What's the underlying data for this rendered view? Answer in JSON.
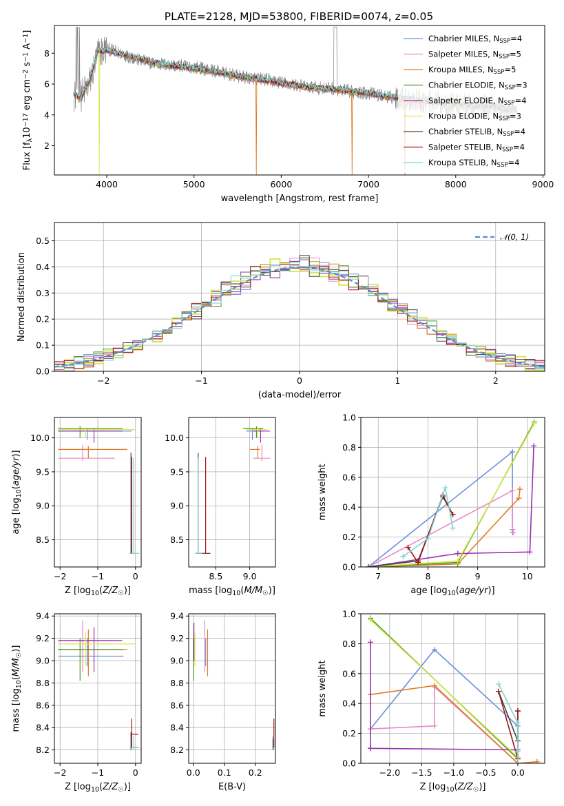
{
  "figure": {
    "title": "PLATE=2128, MJD=53800, FIBERID=0074, z=0.05"
  },
  "series_styles": [
    {
      "name": "Chabrier MILES",
      "ssp": "4",
      "color": "#6a8fdc"
    },
    {
      "name": "Salpeter MILES",
      "ssp": "5",
      "color": "#e78ac3"
    },
    {
      "name": "Kroupa MILES",
      "ssp": "5",
      "color": "#e07b22"
    },
    {
      "name": "Chabrier ELODIE",
      "ssp": "3",
      "color": "#4d9a26"
    },
    {
      "name": "Salpeter ELODIE",
      "ssp": "4",
      "color": "#9b2fae"
    },
    {
      "name": "Kroupa ELODIE",
      "ssp": "3",
      "color": "#d6e84a"
    },
    {
      "name": "Chabrier STELIB",
      "ssp": "4",
      "color": "#444444"
    },
    {
      "name": "Salpeter STELIB",
      "ssp": "4",
      "color": "#a31515"
    },
    {
      "name": "Kroupa STELIB",
      "ssp": "4",
      "color": "#7fd3d3"
    }
  ],
  "chart_data": [
    {
      "id": "spectrum",
      "type": "line",
      "title": "PLATE=2128, MJD=53800, FIBERID=0074, z=0.05",
      "xlabel": "wavelength [Angstrom, rest frame]",
      "ylabel": "Flux [f_λ 10^-17 erg cm^-2 s^-1 A^-1]",
      "xlim": [
        3400,
        9020
      ],
      "ylim": [
        0.1,
        9.8
      ],
      "xticks": [
        4000,
        5000,
        6000,
        7000,
        8000,
        9000
      ],
      "yticks": [
        2,
        4,
        6,
        8
      ],
      "legend": "upper right",
      "data_trend": {
        "x": [
          3600,
          3700,
          3800,
          3900,
          4000,
          4200,
          4400,
          4600,
          4800,
          5000,
          5200,
          5500,
          5800,
          6000,
          6300,
          6600,
          6800,
          7000,
          7200,
          7500,
          7800,
          8000,
          8200,
          8400,
          8600,
          8700
        ],
        "y": [
          5.3,
          5.2,
          6.0,
          8.0,
          8.3,
          7.9,
          7.5,
          7.3,
          7.2,
          7.1,
          6.9,
          6.5,
          6.3,
          6.1,
          5.8,
          5.7,
          5.5,
          5.4,
          5.2,
          5.0,
          4.8,
          4.7,
          4.5,
          4.6,
          4.3,
          4.3
        ]
      },
      "model_trend": {
        "x": [
          3600,
          3700,
          3800,
          3900,
          4000,
          4200,
          4400,
          4600,
          4800,
          5000,
          5200,
          5500,
          5800,
          6000,
          6300,
          6600,
          6800,
          7000,
          7200,
          7500,
          7800,
          8000,
          8200,
          8400,
          8600,
          8700
        ],
        "y": [
          5.5,
          5.0,
          6.2,
          8.1,
          8.2,
          7.9,
          7.6,
          7.3,
          7.15,
          7.0,
          6.85,
          6.5,
          6.25,
          6.05,
          5.8,
          5.65,
          5.5,
          5.4,
          5.2,
          5.0,
          4.8,
          4.7,
          4.55,
          4.6,
          4.35,
          4.35
        ]
      }
    },
    {
      "id": "residuals",
      "type": "histogram",
      "xlabel": "(data-model)/error",
      "ylabel": "Normed distribution",
      "xlim": [
        -2.5,
        2.5
      ],
      "ylim": [
        0,
        0.57
      ],
      "xticks": [
        -2,
        -1,
        0,
        1,
        2
      ],
      "yticks": [
        0.0,
        0.1,
        0.2,
        0.3,
        0.4,
        0.5
      ],
      "reference": {
        "name": "𝒩(0, 1)",
        "mean": 0,
        "sigma": 1,
        "color": "#5b8bd0"
      },
      "bin_width": 0.1
    },
    {
      "id": "age-vs-z",
      "type": "errorbar",
      "xlabel": "Z [log10(Z/Z☉)]",
      "ylabel": "age [log10(age/yr)]",
      "xlim": [
        -2.15,
        0.15
      ],
      "ylim": [
        8.1,
        10.3
      ],
      "xticks": [
        -2,
        -1,
        0
      ],
      "yticks": [
        8.5,
        9.0,
        9.5,
        10.0
      ],
      "points": [
        {
          "s": 0,
          "x": -1.28,
          "xlo": -2.05,
          "xhi": -0.1,
          "y": 10.1,
          "ylo": 9.97,
          "yhi": 10.14
        },
        {
          "s": 1,
          "x": -1.4,
          "xlo": -2.05,
          "xhi": -0.55,
          "y": 9.7,
          "ylo": 9.66,
          "yhi": 9.9
        },
        {
          "s": 2,
          "x": -1.25,
          "xlo": -2.05,
          "xhi": -0.22,
          "y": 9.83,
          "ylo": 9.7,
          "yhi": 9.88
        },
        {
          "s": 3,
          "x": -1.47,
          "xlo": -2.05,
          "xhi": -0.33,
          "y": 10.14,
          "ylo": 10.0,
          "yhi": 10.17
        },
        {
          "s": 4,
          "x": -1.1,
          "xlo": -2.05,
          "xhi": -0.35,
          "y": 10.1,
          "ylo": 9.93,
          "yhi": 10.14
        },
        {
          "s": 5,
          "x": -1.32,
          "xlo": -2.05,
          "xhi": 0.0,
          "y": 10.12,
          "ylo": 10.0,
          "yhi": 10.15
        },
        {
          "s": 6,
          "x": -0.12,
          "xlo": -0.16,
          "xhi": -0.08,
          "y": 8.3,
          "ylo": 8.3,
          "yhi": 9.78
        },
        {
          "s": 7,
          "x": -0.1,
          "xlo": -0.13,
          "xhi": -0.07,
          "y": 8.3,
          "ylo": 8.3,
          "yhi": 9.72
        },
        {
          "s": 8,
          "x": -0.05,
          "xlo": -0.16,
          "xhi": 0.1,
          "y": 8.3,
          "ylo": 8.3,
          "yhi": 9.7
        }
      ]
    },
    {
      "id": "age-vs-mass",
      "type": "errorbar",
      "xlabel": "mass [log10(M/M☉)]",
      "ylabel": "",
      "xlim": [
        8.1,
        9.38
      ],
      "ylim": [
        8.1,
        10.3
      ],
      "xticks": [
        8.5,
        9.0
      ],
      "yticks": [
        8.5,
        9.0,
        9.5,
        10.0
      ],
      "points": [
        {
          "s": 0,
          "x": 9.04,
          "xlo": 8.95,
          "xhi": 9.2,
          "y": 10.1,
          "ylo": 9.97,
          "yhi": 10.14
        },
        {
          "s": 1,
          "x": 9.18,
          "xlo": 9.05,
          "xhi": 9.3,
          "y": 9.7,
          "ylo": 9.66,
          "yhi": 9.9
        },
        {
          "s": 2,
          "x": 9.12,
          "xlo": 9.0,
          "xhi": 9.15,
          "y": 9.83,
          "ylo": 9.7,
          "yhi": 9.88
        },
        {
          "s": 3,
          "x": 9.1,
          "xlo": 8.9,
          "xhi": 9.2,
          "y": 10.14,
          "ylo": 10.0,
          "yhi": 10.17
        },
        {
          "s": 4,
          "x": 9.16,
          "xlo": 9.05,
          "xhi": 9.3,
          "y": 10.1,
          "ylo": 9.93,
          "yhi": 10.14
        },
        {
          "s": 5,
          "x": 9.12,
          "xlo": 8.95,
          "xhi": 9.25,
          "y": 10.12,
          "ylo": 10.0,
          "yhi": 10.15
        },
        {
          "s": 6,
          "x": 8.24,
          "xlo": 8.2,
          "xhi": 8.28,
          "y": 8.3,
          "ylo": 8.3,
          "yhi": 9.78
        },
        {
          "s": 7,
          "x": 8.35,
          "xlo": 8.23,
          "xhi": 8.42,
          "y": 8.3,
          "ylo": 8.3,
          "yhi": 9.72
        },
        {
          "s": 8,
          "x": 8.24,
          "xlo": 8.19,
          "xhi": 8.3,
          "y": 8.3,
          "ylo": 8.3,
          "yhi": 9.7
        }
      ]
    },
    {
      "id": "weight-vs-age",
      "type": "line",
      "xlabel": "age [log10(age/yr)]",
      "ylabel": "mass weight",
      "xlim": [
        6.65,
        10.35
      ],
      "ylim": [
        0,
        1
      ],
      "xticks": [
        7,
        8,
        9,
        10
      ],
      "yticks": [
        0.0,
        0.2,
        0.4,
        0.6,
        0.8,
        1.0
      ],
      "series": [
        {
          "s": 0,
          "x": [
            6.8,
            9.7,
            9.7,
            9.7
          ],
          "y": [
            0.0,
            0.77,
            0.25,
            0.23
          ]
        },
        {
          "s": 1,
          "x": [
            6.8,
            9.7,
            9.7,
            9.72
          ],
          "y": [
            0.0,
            0.51,
            0.25,
            0.23
          ]
        },
        {
          "s": 2,
          "x": [
            6.8,
            8.6,
            9.83,
            9.85
          ],
          "y": [
            0.0,
            0.02,
            0.46,
            0.52
          ]
        },
        {
          "s": 3,
          "x": [
            6.8,
            8.6,
            10.14
          ],
          "y": [
            0.0,
            0.03,
            0.97
          ]
        },
        {
          "s": 4,
          "x": [
            6.8,
            8.6,
            10.05,
            10.13
          ],
          "y": [
            0.0,
            0.09,
            0.1,
            0.81
          ]
        },
        {
          "s": 5,
          "x": [
            6.8,
            8.6,
            10.14
          ],
          "y": [
            0.0,
            0.04,
            0.96
          ]
        },
        {
          "s": 6,
          "x": [
            6.8,
            7.8,
            8.3,
            8.5
          ],
          "y": [
            0.0,
            0.04,
            0.47,
            0.35
          ]
        },
        {
          "s": 7,
          "x": [
            7.6,
            7.8,
            8.3,
            8.5
          ],
          "y": [
            0.13,
            0.03,
            0.48,
            0.35
          ]
        },
        {
          "s": 8,
          "x": [
            7.5,
            8.0,
            8.35,
            8.5
          ],
          "y": [
            0.07,
            0.19,
            0.53,
            0.26
          ]
        }
      ]
    },
    {
      "id": "mass-vs-z",
      "type": "errorbar",
      "xlabel": "Z [log10(Z/Z☉)]",
      "ylabel": "mass [log10(M/M☉)]",
      "xlim": [
        -2.15,
        0.15
      ],
      "ylim": [
        8.08,
        9.42
      ],
      "xticks": [
        -2,
        -1,
        0
      ],
      "yticks": [
        8.2,
        8.4,
        8.6,
        8.8,
        9.0,
        9.2,
        9.4
      ],
      "points": [
        {
          "s": 0,
          "x": -1.28,
          "xlo": -2.05,
          "xhi": -0.32,
          "y": 9.04,
          "ylo": 8.95,
          "yhi": 9.2
        },
        {
          "s": 1,
          "x": -1.4,
          "xlo": -2.05,
          "xhi": -0.55,
          "y": 9.18,
          "ylo": 8.9,
          "yhi": 9.36
        },
        {
          "s": 2,
          "x": -1.25,
          "xlo": -2.05,
          "xhi": -0.22,
          "y": 9.1,
          "ylo": 8.86,
          "yhi": 9.28
        },
        {
          "s": 3,
          "x": -1.47,
          "xlo": -2.05,
          "xhi": -0.33,
          "y": 9.1,
          "ylo": 8.82,
          "yhi": 9.2
        },
        {
          "s": 4,
          "x": -1.1,
          "xlo": -2.05,
          "xhi": -0.35,
          "y": 9.18,
          "ylo": 8.9,
          "yhi": 9.3
        },
        {
          "s": 5,
          "x": -1.32,
          "xlo": -2.05,
          "xhi": 0.0,
          "y": 9.15,
          "ylo": 8.95,
          "yhi": 9.25
        },
        {
          "s": 6,
          "x": -0.12,
          "xlo": -0.16,
          "xhi": 0.08,
          "y": 8.22,
          "ylo": 8.2,
          "yhi": 8.36
        },
        {
          "s": 7,
          "x": -0.1,
          "xlo": -0.13,
          "xhi": 0.07,
          "y": 8.34,
          "ylo": 8.22,
          "yhi": 8.48
        },
        {
          "s": 8,
          "x": -0.05,
          "xlo": -0.16,
          "xhi": 0.1,
          "y": 8.22,
          "ylo": 8.2,
          "yhi": 8.32
        }
      ]
    },
    {
      "id": "mass-vs-ebv",
      "type": "errorbar",
      "xlabel": "E(B-V)",
      "ylabel": "",
      "xlim": [
        -0.015,
        0.265
      ],
      "ylim": [
        8.08,
        9.42
      ],
      "xticks": [
        0.0,
        0.1,
        0.2
      ],
      "yticks": [
        8.2,
        8.4,
        8.6,
        8.8,
        9.0,
        9.2,
        9.4
      ],
      "points": [
        {
          "s": 0,
          "x": 0.04,
          "xlo": 0.04,
          "xhi": 0.04,
          "y": 9.04,
          "ylo": 8.95,
          "yhi": 9.2
        },
        {
          "s": 1,
          "x": 0.037,
          "xlo": 0.037,
          "xhi": 0.037,
          "y": 9.18,
          "ylo": 8.9,
          "yhi": 9.36
        },
        {
          "s": 2,
          "x": 0.046,
          "xlo": 0.046,
          "xhi": 0.046,
          "y": 9.1,
          "ylo": 8.86,
          "yhi": 9.28
        },
        {
          "s": 3,
          "x": 0.0,
          "xlo": 0.0,
          "xhi": 0.0,
          "y": 9.1,
          "ylo": 8.82,
          "yhi": 9.2
        },
        {
          "s": 4,
          "x": 0.002,
          "xlo": 0.002,
          "xhi": 0.002,
          "y": 9.18,
          "ylo": 9.0,
          "yhi": 9.34
        },
        {
          "s": 5,
          "x": 0.005,
          "xlo": 0.005,
          "xhi": 0.005,
          "y": 9.15,
          "ylo": 8.95,
          "yhi": 9.25
        },
        {
          "s": 6,
          "x": 0.258,
          "xlo": 0.258,
          "xhi": 0.258,
          "y": 8.22,
          "ylo": 8.2,
          "yhi": 8.3
        },
        {
          "s": 7,
          "x": 0.26,
          "xlo": 0.26,
          "xhi": 0.26,
          "y": 8.34,
          "ylo": 8.22,
          "yhi": 8.48
        },
        {
          "s": 8,
          "x": 0.256,
          "xlo": 0.256,
          "xhi": 0.256,
          "y": 8.22,
          "ylo": 8.2,
          "yhi": 8.32
        }
      ]
    },
    {
      "id": "weight-vs-z",
      "type": "line",
      "xlabel": "Z [log10(Z/Z☉)]",
      "ylabel": "mass weight",
      "xlim": [
        -2.45,
        0.42
      ],
      "ylim": [
        0,
        1
      ],
      "xticks": [
        -2.0,
        -1.5,
        -1.0,
        -0.5,
        0.0
      ],
      "yticks": [
        0.0,
        0.2,
        0.4,
        0.6,
        0.8,
        1.0
      ],
      "series": [
        {
          "s": 0,
          "x": [
            -2.3,
            -1.3,
            0.0,
            0.0
          ],
          "y": [
            0.23,
            0.76,
            0.25,
            0.0
          ]
        },
        {
          "s": 1,
          "x": [
            -2.3,
            -1.3,
            -1.3,
            0.0
          ],
          "y": [
            0.23,
            0.25,
            0.51,
            0.0
          ]
        },
        {
          "s": 2,
          "x": [
            -2.3,
            -1.3,
            0.0,
            0.3
          ],
          "y": [
            0.46,
            0.52,
            0.0,
            0.01
          ]
        },
        {
          "s": 3,
          "x": [
            -2.3,
            0.0
          ],
          "y": [
            0.97,
            0.03
          ]
        },
        {
          "s": 4,
          "x": [
            -2.3,
            -2.3,
            -2.3,
            0.0
          ],
          "y": [
            0.81,
            0.1,
            0.1,
            0.09
          ]
        },
        {
          "s": 5,
          "x": [
            -2.3,
            0.0
          ],
          "y": [
            0.96,
            0.04
          ]
        },
        {
          "s": 6,
          "x": [
            -0.3,
            0.0,
            0.0
          ],
          "y": [
            0.48,
            0.15,
            0.35
          ]
        },
        {
          "s": 7,
          "x": [
            -0.3,
            0.0,
            0.0
          ],
          "y": [
            0.48,
            0.03,
            0.35
          ]
        },
        {
          "s": 8,
          "x": [
            -0.3,
            0.0,
            0.0,
            0.0
          ],
          "y": [
            0.53,
            0.27,
            0.08,
            0.0
          ]
        }
      ]
    }
  ]
}
